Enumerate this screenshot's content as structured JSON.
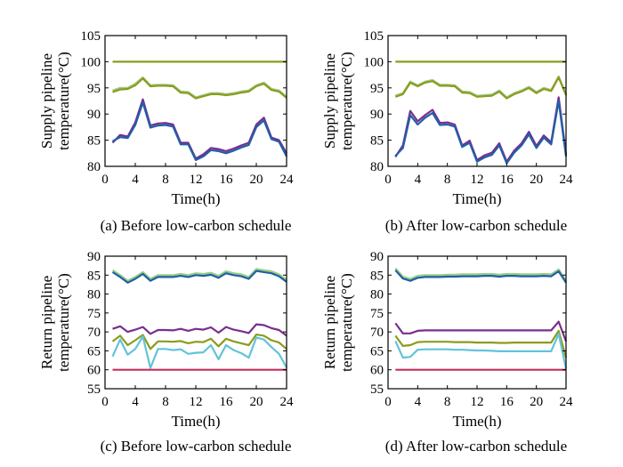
{
  "chart_data": [
    {
      "type": "line",
      "caption": "(a) Before low-carbon schedule",
      "xlabel": "Time(h)",
      "ylabel": [
        "Supply pipeline",
        "temperature(°C)"
      ],
      "xlim": [
        0,
        24
      ],
      "ylim": [
        80,
        105
      ],
      "xticks": [
        0,
        4,
        8,
        12,
        16,
        20,
        24
      ],
      "yticks": [
        80,
        85,
        90,
        95,
        100,
        105
      ],
      "grid": false,
      "x": [
        1,
        2,
        3,
        4,
        5,
        6,
        7,
        8,
        9,
        10,
        11,
        12,
        13,
        14,
        15,
        16,
        17,
        18,
        19,
        20,
        21,
        22,
        23,
        24
      ],
      "series": [
        {
          "color": "#8c9b1e",
          "values": [
            100,
            100,
            100,
            100,
            100,
            100,
            100,
            100,
            100,
            100,
            100,
            100,
            100,
            100,
            100,
            100,
            100,
            100,
            100,
            100,
            100,
            100,
            100,
            100
          ]
        },
        {
          "color": "#9acd82",
          "values": [
            94.5,
            95,
            95,
            95.8,
            97,
            95.5,
            95.6,
            95.6,
            95.5,
            94.3,
            94.2,
            93.2,
            93.6,
            94,
            94,
            93.8,
            94,
            94.3,
            94.5,
            95.5,
            96,
            94.8,
            94.5,
            93.3
          ]
        },
        {
          "color": "#8c9b1e",
          "values": [
            94.2,
            94.7,
            94.8,
            95.5,
            96.8,
            95.3,
            95.4,
            95.4,
            95.3,
            94.1,
            94,
            93,
            93.4,
            93.8,
            93.8,
            93.6,
            93.8,
            94.1,
            94.3,
            95.3,
            95.8,
            94.6,
            94.3,
            93.1
          ]
        },
        {
          "color": "#7a2e8e",
          "values": [
            84.5,
            86,
            85.7,
            88.4,
            92.8,
            87.8,
            88.2,
            88.3,
            88,
            84.5,
            84.5,
            81.5,
            82.3,
            83.5,
            83.3,
            82.9,
            83.4,
            84,
            84.5,
            88,
            89.3,
            85.5,
            85,
            82.5
          ]
        },
        {
          "color": "#1f5fa8",
          "values": [
            84.8,
            85.6,
            85.4,
            87.9,
            92.2,
            87.4,
            87.8,
            87.9,
            87.6,
            84.2,
            84.2,
            81.2,
            81.9,
            83.1,
            82.9,
            82.5,
            83,
            83.6,
            84.1,
            87.5,
            88.8,
            85.2,
            84.7,
            81.9
          ]
        }
      ]
    },
    {
      "type": "line",
      "caption": "(b) After low-carbon schedule",
      "xlabel": "Time(h)",
      "ylabel": [
        "Supply pipeline",
        "temperature(°C)"
      ],
      "xlim": [
        0,
        24
      ],
      "ylim": [
        80,
        105
      ],
      "xticks": [
        0,
        4,
        8,
        12,
        16,
        20,
        24
      ],
      "yticks": [
        80,
        85,
        90,
        95,
        100,
        105
      ],
      "grid": false,
      "x": [
        1,
        2,
        3,
        4,
        5,
        6,
        7,
        8,
        9,
        10,
        11,
        12,
        13,
        14,
        15,
        16,
        17,
        18,
        19,
        20,
        21,
        22,
        23,
        24
      ],
      "series": [
        {
          "color": "#8c9b1e",
          "values": [
            100,
            100,
            100,
            100,
            100,
            100,
            100,
            100,
            100,
            100,
            100,
            100,
            100,
            100,
            100,
            100,
            100,
            100,
            100,
            100,
            100,
            100,
            100,
            100
          ]
        },
        {
          "color": "#9acd82",
          "values": [
            93.5,
            94,
            96.2,
            95.5,
            96.2,
            96.5,
            95.6,
            95.6,
            95.5,
            94.3,
            94.2,
            93.5,
            93.6,
            93.7,
            94.5,
            93.2,
            94,
            94.5,
            95.2,
            94.2,
            95,
            94.6,
            97.2,
            93.8
          ]
        },
        {
          "color": "#8c9b1e",
          "values": [
            93.3,
            93.8,
            96,
            95.3,
            96,
            96.3,
            95.4,
            95.4,
            95.3,
            94.1,
            94,
            93.3,
            93.4,
            93.5,
            94.3,
            93,
            93.8,
            94.3,
            95,
            94,
            94.8,
            94.4,
            97,
            93.6
          ]
        },
        {
          "color": "#7a2e8e",
          "values": [
            81.8,
            84,
            90.6,
            88.6,
            89.8,
            90.8,
            88.3,
            88.4,
            88,
            84,
            84.9,
            81.2,
            82.1,
            82.6,
            84.4,
            80.9,
            83,
            84.4,
            86.6,
            83.9,
            85.9,
            84.6,
            93.2,
            82.3
          ]
        },
        {
          "color": "#1f5fa8",
          "values": [
            82,
            83.5,
            89.8,
            88,
            89.3,
            90.2,
            87.9,
            88,
            87.6,
            83.7,
            84.5,
            80.9,
            81.7,
            82.2,
            84,
            80.6,
            82.6,
            84,
            86.1,
            83.5,
            85.5,
            84.2,
            92.5,
            81.9
          ]
        }
      ]
    },
    {
      "type": "line",
      "caption": "(c) Before low-carbon schedule",
      "xlabel": "Time(h)",
      "ylabel": [
        "Return pipeline",
        "temperature(°C)"
      ],
      "xlim": [
        0,
        24
      ],
      "ylim": [
        55,
        90
      ],
      "xticks": [
        0,
        4,
        8,
        12,
        16,
        20,
        24
      ],
      "yticks": [
        55,
        60,
        65,
        70,
        75,
        80,
        85,
        90
      ],
      "grid": false,
      "x": [
        1,
        2,
        3,
        4,
        5,
        6,
        7,
        8,
        9,
        10,
        11,
        12,
        13,
        14,
        15,
        16,
        17,
        18,
        19,
        20,
        21,
        22,
        23,
        24
      ],
      "series": [
        {
          "color": "#9acd82",
          "values": [
            86.3,
            85,
            83.5,
            84.5,
            85.8,
            84,
            85,
            85,
            85,
            85.3,
            85,
            85.5,
            85.3,
            85.6,
            84.8,
            86,
            85.5,
            85.2,
            84.5,
            86.6,
            86.3,
            86,
            85.2,
            83.7
          ]
        },
        {
          "color": "#1f5fa8",
          "values": [
            85.8,
            84.5,
            83,
            84,
            85.3,
            83.5,
            84.5,
            84.5,
            84.5,
            84.8,
            84.5,
            85,
            84.8,
            85.1,
            84.3,
            85.5,
            85,
            84.7,
            84,
            86.1,
            85.8,
            85.5,
            84.7,
            83.2
          ]
        },
        {
          "color": "#7a2e8e",
          "values": [
            70.8,
            71.5,
            70,
            70.6,
            71.3,
            69.5,
            70.5,
            70.5,
            70.4,
            70.8,
            70.3,
            70.8,
            70.6,
            71.2,
            69.8,
            71.3,
            70.6,
            70.2,
            69.7,
            72,
            71.8,
            71,
            70.5,
            69
          ]
        },
        {
          "color": "#8c9b1e",
          "values": [
            67.5,
            69,
            66.5,
            67.8,
            69.2,
            65.5,
            67.5,
            67.5,
            67.4,
            67.6,
            67,
            67.4,
            67.3,
            68.2,
            66.2,
            68.2,
            67.5,
            67,
            66.5,
            69.3,
            69,
            67.8,
            67.2,
            65.5
          ]
        },
        {
          "color": "#63c3d9",
          "values": [
            63.5,
            68,
            64,
            65.5,
            68.8,
            60.5,
            65.5,
            65.5,
            65.2,
            65.4,
            64.2,
            64.5,
            64.6,
            66.5,
            62.8,
            66.5,
            65.2,
            64.4,
            63.2,
            68.5,
            68,
            66,
            64.2,
            60.6
          ]
        },
        {
          "color": "#c0305a",
          "values": [
            60,
            60,
            60,
            60,
            60,
            60,
            60,
            60,
            60,
            60,
            60,
            60,
            60,
            60,
            60,
            60,
            60,
            60,
            60,
            60,
            60,
            60,
            60,
            60
          ]
        }
      ]
    },
    {
      "type": "line",
      "caption": "(d) After low-carbon schedule",
      "xlabel": "Time(h)",
      "ylabel": [
        "Return pipeline",
        "temperature(°C)"
      ],
      "xlim": [
        0,
        24
      ],
      "ylim": [
        55,
        90
      ],
      "xticks": [
        0,
        4,
        8,
        12,
        16,
        20,
        24
      ],
      "yticks": [
        55,
        60,
        65,
        70,
        75,
        80,
        85,
        90
      ],
      "grid": false,
      "x": [
        1,
        2,
        3,
        4,
        5,
        6,
        7,
        8,
        9,
        10,
        11,
        12,
        13,
        14,
        15,
        16,
        17,
        18,
        19,
        20,
        21,
        22,
        23,
        24
      ],
      "series": [
        {
          "color": "#9acd82",
          "values": [
            86.8,
            84.6,
            84,
            84.8,
            85,
            85,
            85,
            85.1,
            85.1,
            85.2,
            85.2,
            85.2,
            85.3,
            85.3,
            85.1,
            85.3,
            85.3,
            85.2,
            85.2,
            85.2,
            85.3,
            85.2,
            86.5,
            83.5
          ]
        },
        {
          "color": "#1f5fa8",
          "values": [
            86.3,
            84.1,
            83.5,
            84.3,
            84.5,
            84.5,
            84.5,
            84.6,
            84.6,
            84.7,
            84.7,
            84.7,
            84.8,
            84.8,
            84.6,
            84.8,
            84.8,
            84.7,
            84.7,
            84.7,
            84.8,
            84.7,
            86,
            83
          ]
        },
        {
          "color": "#7a2e8e",
          "values": [
            72.3,
            69.6,
            69.6,
            70.3,
            70.4,
            70.4,
            70.4,
            70.4,
            70.4,
            70.4,
            70.4,
            70.4,
            70.4,
            70.4,
            70.4,
            70.4,
            70.4,
            70.4,
            70.4,
            70.4,
            70.4,
            70.4,
            72.7,
            67.5
          ]
        },
        {
          "color": "#8c9b1e",
          "values": [
            69,
            66.3,
            66.5,
            67.3,
            67.4,
            67.4,
            67.4,
            67.4,
            67.3,
            67.3,
            67.3,
            67.2,
            67.2,
            67.2,
            67.1,
            67.1,
            67.2,
            67.2,
            67.2,
            67.2,
            67.2,
            67.2,
            70.3,
            63.2
          ]
        },
        {
          "color": "#63c3d9",
          "values": [
            67.6,
            63.2,
            63.4,
            65.3,
            65.4,
            65.4,
            65.4,
            65.4,
            65.3,
            65.3,
            65.2,
            65.1,
            65.1,
            65,
            64.9,
            64.9,
            64.9,
            64.9,
            64.9,
            64.9,
            64.9,
            64.9,
            69.5,
            60.3
          ]
        },
        {
          "color": "#c0305a",
          "values": [
            60,
            60,
            60,
            60,
            60,
            60,
            60,
            60,
            60,
            60,
            60,
            60,
            60,
            60,
            60,
            60,
            60,
            60,
            60,
            60,
            60,
            60,
            60,
            60
          ]
        }
      ]
    }
  ]
}
